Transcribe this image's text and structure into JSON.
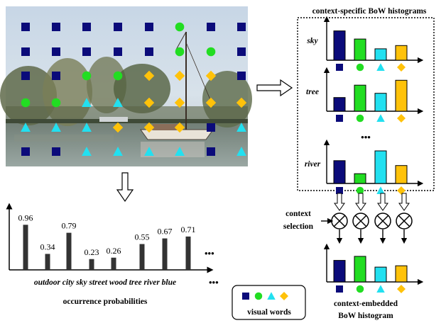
{
  "colors": {
    "navy": "#0b0b7a",
    "green": "#22dd22",
    "cyan": "#22e0f0",
    "yellow": "#ffc20a",
    "dark": "#333333"
  },
  "legend": {
    "label": "visual words"
  },
  "labels": {
    "histograms_title": "context-specific BoW histograms",
    "occurrence_title": "occurrence probabilities",
    "context_selection_line1": "context",
    "context_selection_line2": "selection",
    "embedded_line1": "context-embedded",
    "embedded_line2": "BoW histogram",
    "ellipsis": "•••"
  },
  "contexts": [
    {
      "name": "sky",
      "values": [
        0.9,
        0.65,
        0.35,
        0.45
      ]
    },
    {
      "name": "tree",
      "values": [
        0.42,
        0.8,
        0.55,
        0.95
      ]
    },
    {
      "name": "river",
      "values": [
        0.7,
        0.3,
        1.0,
        0.55
      ]
    }
  ],
  "embedded_values": [
    0.8,
    0.95,
    0.55,
    0.6
  ],
  "chart_data": {
    "type": "bar",
    "title": "occurrence probabilities",
    "categories": [
      "outdoor",
      "city",
      "sky",
      "street",
      "wood",
      "tree",
      "river",
      "blue"
    ],
    "values": [
      0.96,
      0.34,
      0.79,
      0.23,
      0.26,
      0.55,
      0.67,
      0.71
    ],
    "value_labels": [
      "0.96",
      "0.34",
      "0.79",
      "0.23",
      "0.26",
      "0.55",
      "0.67",
      "0.71"
    ]
  },
  "image_grid": {
    "rows": [
      [
        "square",
        "square",
        "square",
        "square",
        "square",
        "circle",
        "square",
        "square"
      ],
      [
        "square",
        "square",
        "square",
        "square",
        "square",
        "circle",
        "circle",
        "square"
      ],
      [
        "square",
        "square",
        "circle",
        "circle",
        "diamond",
        "diamond",
        "diamond",
        "square"
      ],
      [
        "circle",
        "circle",
        "triangle",
        "triangle",
        "diamond",
        "diamond",
        "diamond",
        "diamond"
      ],
      [
        "triangle",
        "triangle",
        "triangle",
        "diamond",
        "diamond",
        "diamond",
        "square",
        "triangle"
      ],
      [
        "square",
        "square",
        "triangle",
        "triangle",
        "triangle",
        "triangle",
        "square",
        "triangle"
      ]
    ]
  }
}
